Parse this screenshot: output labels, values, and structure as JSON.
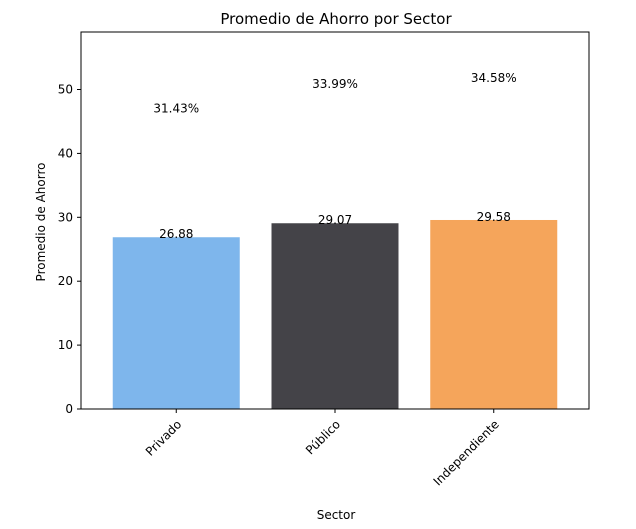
{
  "chart_data": {
    "type": "bar",
    "title": "Promedio de Ahorro por Sector",
    "xlabel": "Sector",
    "ylabel": "Promedio de Ahorro",
    "categories": [
      "Privado",
      "Público",
      "Independiente"
    ],
    "values": [
      26.88,
      29.07,
      29.58
    ],
    "value_labels": [
      "26.88",
      "29.07",
      "29.58"
    ],
    "percent_labels": [
      "31.43%",
      "33.99%",
      "34.58%"
    ],
    "colors": [
      "#7eb6ec",
      "#444348",
      "#f5a55b"
    ],
    "ylim": [
      0,
      59
    ],
    "yticks": [
      0,
      10,
      20,
      30,
      40,
      50
    ],
    "grid": false,
    "legend": "none"
  }
}
